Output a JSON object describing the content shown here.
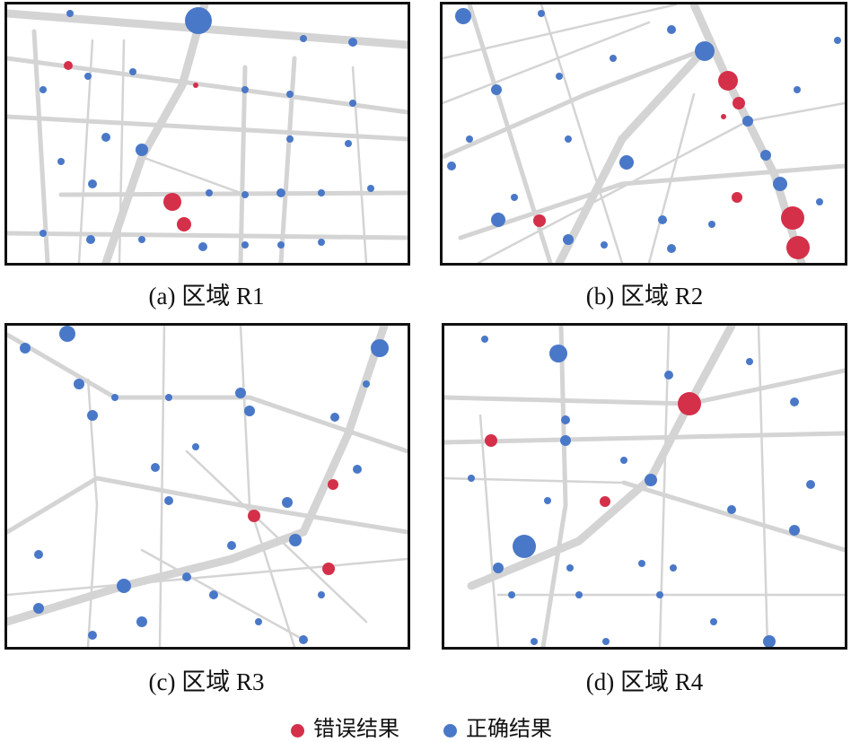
{
  "panels": [
    {
      "caption": "(a) 区域 R1"
    },
    {
      "caption": "(b) 区域 R2"
    },
    {
      "caption": "(c) 区域 R3"
    },
    {
      "caption": "(d) 区域 R4"
    }
  ],
  "legend": [
    {
      "label": "错误结果"
    },
    {
      "label": "正确结果"
    }
  ]
}
